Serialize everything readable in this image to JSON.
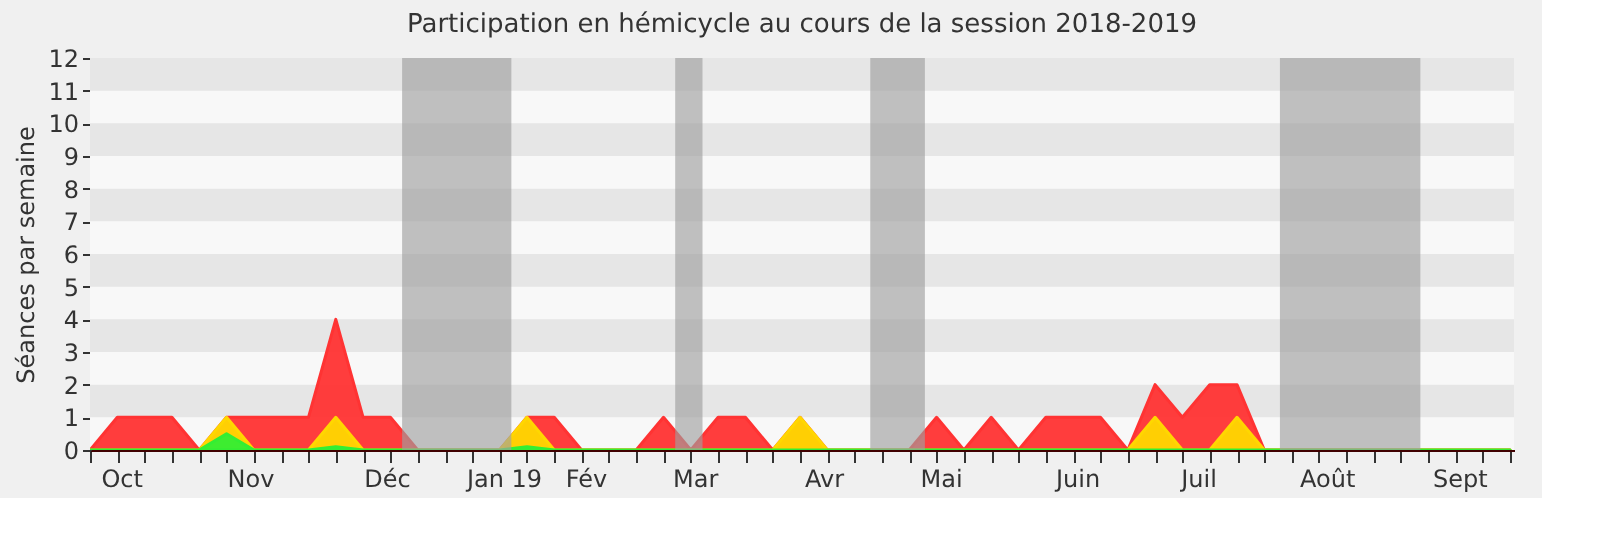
{
  "chart_data": {
    "type": "area",
    "title": "Participation en hémicycle au cours de la session 2018-2019",
    "ylabel": "Séances par semaine",
    "x": [
      "2018-10-01",
      "2018-10-08",
      "2018-10-15",
      "2018-10-22",
      "2018-10-29",
      "2018-11-05",
      "2018-11-12",
      "2018-11-19",
      "2018-11-26",
      "2018-12-03",
      "2018-12-10",
      "2018-12-17",
      "2018-12-24",
      "2018-12-31",
      "2019-01-07",
      "2019-01-14",
      "2019-01-21",
      "2019-01-28",
      "2019-02-04",
      "2019-02-11",
      "2019-02-18",
      "2019-02-25",
      "2019-03-04",
      "2019-03-11",
      "2019-03-18",
      "2019-03-25",
      "2019-04-01",
      "2019-04-08",
      "2019-04-15",
      "2019-04-22",
      "2019-04-29",
      "2019-05-06",
      "2019-05-13",
      "2019-05-20",
      "2019-05-27",
      "2019-06-03",
      "2019-06-10",
      "2019-06-17",
      "2019-06-24",
      "2019-07-01",
      "2019-07-08",
      "2019-07-15",
      "2019-07-22",
      "2019-07-29",
      "2019-08-05",
      "2019-08-12",
      "2019-08-19",
      "2019-08-26",
      "2019-09-02",
      "2019-09-09",
      "2019-09-16",
      "2019-09-23",
      "2019-09-30"
    ],
    "series": [
      {
        "color": "#ff3333",
        "values": [
          0,
          1,
          1,
          1,
          0,
          1,
          1,
          1,
          1,
          4,
          1,
          1,
          0,
          0,
          0,
          0,
          1,
          1,
          0,
          0,
          0,
          1,
          0,
          1,
          1,
          0,
          1,
          0,
          0,
          0,
          0,
          1,
          0,
          1,
          0,
          1,
          1,
          1,
          0,
          2,
          1,
          2,
          2,
          0,
          0,
          0,
          0,
          0,
          0,
          0,
          0,
          0,
          0
        ]
      },
      {
        "color": "#ffd700",
        "values": [
          0,
          0,
          0,
          0,
          0,
          1,
          0,
          0,
          0,
          1,
          0,
          0,
          0,
          0,
          0,
          0,
          1,
          0,
          0,
          0,
          0,
          0,
          0,
          0,
          0,
          0,
          1,
          0,
          0,
          0,
          0,
          0,
          0,
          0,
          0,
          0,
          0,
          0,
          0,
          1,
          0,
          0,
          1,
          0,
          0,
          0,
          0,
          0,
          0,
          0,
          0,
          0,
          0
        ]
      },
      {
        "color": "#33ee33",
        "values": [
          0,
          0,
          0,
          0,
          0,
          0.5,
          0,
          0,
          0,
          0.1,
          0,
          0,
          0,
          0,
          0,
          0,
          0.1,
          0,
          0,
          0,
          0,
          0,
          0,
          0,
          0,
          0,
          0,
          0,
          0,
          0,
          0,
          0,
          0,
          0,
          0,
          0,
          0,
          0,
          0,
          0,
          0,
          0,
          0,
          0,
          0,
          0,
          0,
          0,
          0,
          0,
          0,
          0,
          0
        ]
      }
    ],
    "xlim": [
      "2018-10-01",
      "2019-10-01"
    ],
    "ylim": [
      0,
      12
    ],
    "yticks": [
      0,
      1,
      2,
      3,
      4,
      5,
      6,
      7,
      8,
      9,
      10,
      11,
      12
    ],
    "xticks": [
      {
        "value": "2018-10-09",
        "label": "Oct"
      },
      {
        "value": "2018-11-11",
        "label": "Nov"
      },
      {
        "value": "2018-12-16",
        "label": "Déc"
      },
      {
        "value": "2019-01-15",
        "label": "Jan 19"
      },
      {
        "value": "2019-02-05",
        "label": "Fév"
      },
      {
        "value": "2019-03-05",
        "label": "Mar"
      },
      {
        "value": "2019-04-07",
        "label": "Avr"
      },
      {
        "value": "2019-05-07",
        "label": "Mai"
      },
      {
        "value": "2019-06-11",
        "label": "Juin"
      },
      {
        "value": "2019-07-12",
        "label": "Juil"
      },
      {
        "value": "2019-08-14",
        "label": "Août"
      },
      {
        "value": "2019-09-17",
        "label": "Sept"
      },
      {
        "value": "2018-10-01",
        "label": null
      },
      {
        "value": "2018-10-08",
        "label": null
      },
      {
        "value": "2018-10-15",
        "label": null
      },
      {
        "value": "2018-10-22",
        "label": null
      },
      {
        "value": "2018-10-29",
        "label": null
      },
      {
        "value": "2018-11-05",
        "label": null
      },
      {
        "value": "2018-11-12",
        "label": null
      },
      {
        "value": "2018-11-19",
        "label": null
      },
      {
        "value": "2018-11-26",
        "label": null
      },
      {
        "value": "2018-12-03",
        "label": null
      },
      {
        "value": "2018-12-10",
        "label": null
      },
      {
        "value": "2018-12-17",
        "label": null
      },
      {
        "value": "2018-12-24",
        "label": null
      },
      {
        "value": "2018-12-31",
        "label": null
      },
      {
        "value": "2019-01-07",
        "label": null
      },
      {
        "value": "2019-01-14",
        "label": null
      },
      {
        "value": "2019-01-21",
        "label": null
      },
      {
        "value": "2019-01-28",
        "label": null
      },
      {
        "value": "2019-02-04",
        "label": null
      },
      {
        "value": "2019-02-11",
        "label": null
      },
      {
        "value": "2019-02-18",
        "label": null
      },
      {
        "value": "2019-02-25",
        "label": null
      },
      {
        "value": "2019-03-04",
        "label": null
      },
      {
        "value": "2019-03-11",
        "label": null
      },
      {
        "value": "2019-03-18",
        "label": null
      },
      {
        "value": "2019-03-25",
        "label": null
      },
      {
        "value": "2019-04-01",
        "label": null
      },
      {
        "value": "2019-04-08",
        "label": null
      },
      {
        "value": "2019-04-15",
        "label": null
      },
      {
        "value": "2019-04-22",
        "label": null
      },
      {
        "value": "2019-04-29",
        "label": null
      },
      {
        "value": "2019-05-06",
        "label": null
      },
      {
        "value": "2019-05-13",
        "label": null
      },
      {
        "value": "2019-05-20",
        "label": null
      },
      {
        "value": "2019-05-27",
        "label": null
      },
      {
        "value": "2019-06-03",
        "label": null
      },
      {
        "value": "2019-06-10",
        "label": null
      },
      {
        "value": "2019-06-17",
        "label": null
      },
      {
        "value": "2019-06-24",
        "label": null
      },
      {
        "value": "2019-07-01",
        "label": null
      },
      {
        "value": "2019-07-08",
        "label": null
      },
      {
        "value": "2019-07-15",
        "label": null
      },
      {
        "value": "2019-07-22",
        "label": null
      },
      {
        "value": "2019-07-29",
        "label": null
      },
      {
        "value": "2019-08-05",
        "label": null
      },
      {
        "value": "2019-08-12",
        "label": null
      },
      {
        "value": "2019-08-19",
        "label": null
      },
      {
        "value": "2019-08-26",
        "label": null
      },
      {
        "value": "2019-09-02",
        "label": null
      },
      {
        "value": "2019-09-09",
        "label": null
      },
      {
        "value": "2019-09-16",
        "label": null
      },
      {
        "value": "2019-09-23",
        "label": null
      },
      {
        "value": "2019-09-30",
        "label": null
      }
    ],
    "bands": [
      {
        "axis": "y",
        "from": 1,
        "to": 2,
        "color": "#e6e6e6"
      },
      {
        "axis": "y",
        "from": 3,
        "to": 4,
        "color": "#e6e6e6"
      },
      {
        "axis": "y",
        "from": 5,
        "to": 6,
        "color": "#e6e6e6"
      },
      {
        "axis": "y",
        "from": 7,
        "to": 8,
        "color": "#e6e6e6"
      },
      {
        "axis": "y",
        "from": 9,
        "to": 10,
        "color": "#e6e6e6"
      },
      {
        "axis": "y",
        "from": 11,
        "to": 12,
        "color": "#e6e6e6"
      },
      {
        "axis": "x",
        "from": "2018-12-20",
        "to": "2019-01-17",
        "color": "#a0a0a0"
      },
      {
        "axis": "x",
        "from": "2019-02-28",
        "to": "2019-03-07",
        "color": "#a0a0a0"
      },
      {
        "axis": "x",
        "from": "2019-04-19",
        "to": "2019-05-03",
        "color": "#a0a0a0"
      },
      {
        "axis": "x",
        "from": "2019-08-02",
        "to": "2019-09-07",
        "color": "#a0a0a0"
      }
    ]
  }
}
